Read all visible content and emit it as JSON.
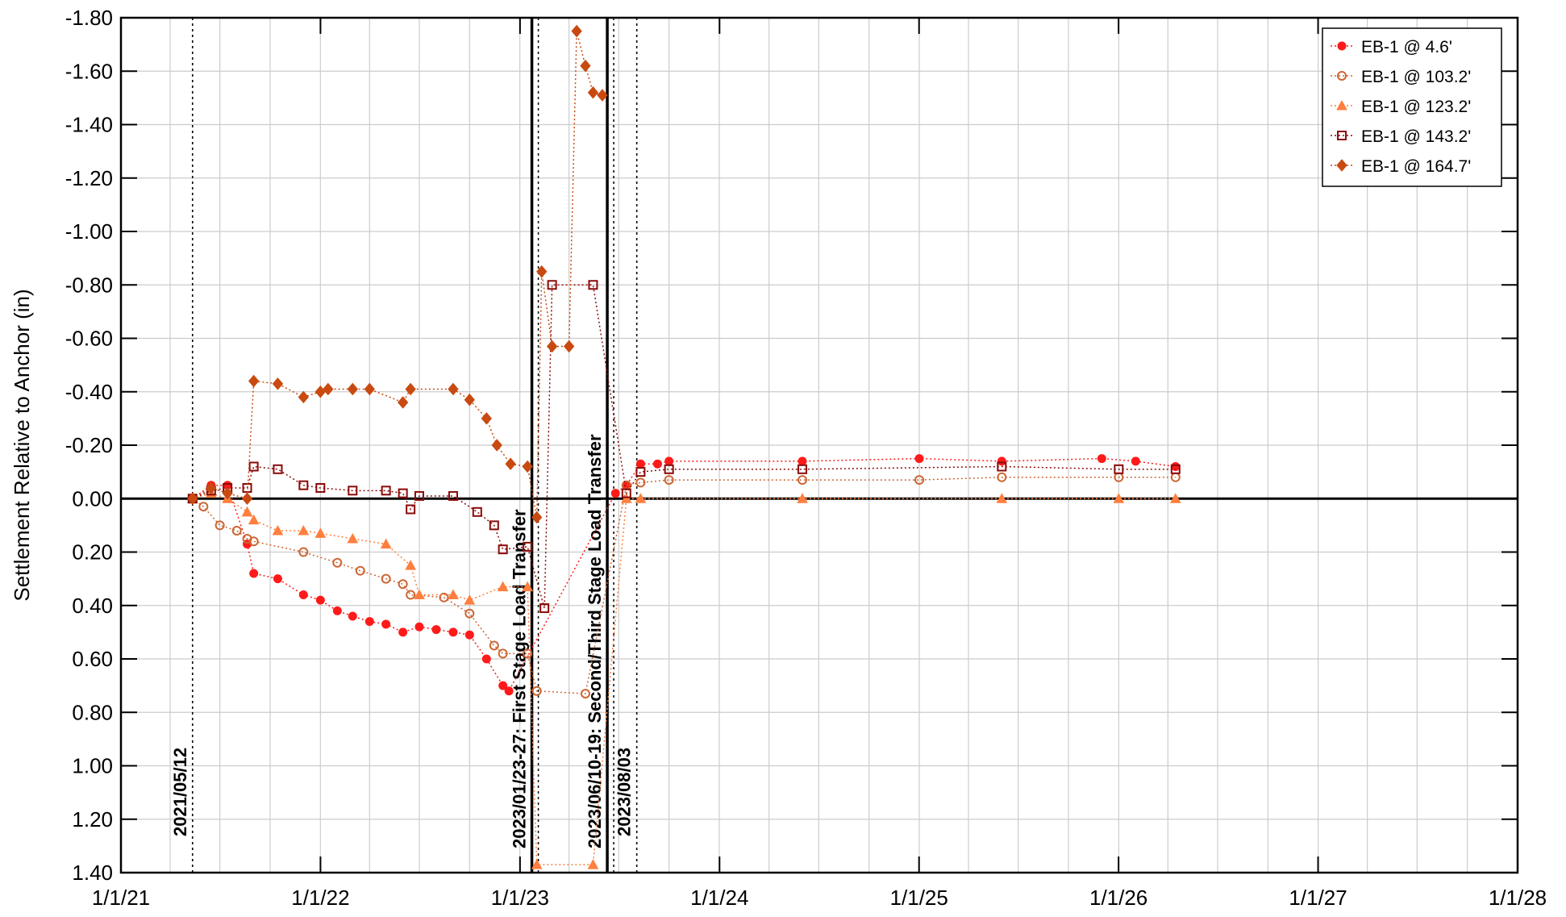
{
  "chart_data": {
    "type": "scatter",
    "title": "",
    "xlabel": "",
    "ylabel": "Settlement Relative to Anchor (in)",
    "x_ticks": [
      "1/1/21",
      "1/1/22",
      "1/1/23",
      "1/1/24",
      "1/1/25",
      "1/1/26",
      "1/1/27",
      "1/1/28"
    ],
    "y_ticks": [
      "-1.80",
      "-1.60",
      "-1.40",
      "-1.20",
      "-1.00",
      "-0.80",
      "-0.60",
      "-0.40",
      "-0.20",
      "0.00",
      "0.20",
      "0.40",
      "0.60",
      "0.80",
      "1.00",
      "1.20",
      "1.40"
    ],
    "xlim": [
      "2021-01-01",
      "2028-01-01"
    ],
    "ylim": [
      -1.8,
      1.4
    ],
    "y_inverted": true,
    "grid": true,
    "legend_position": "top-right",
    "events": [
      {
        "date": "2021-05-12",
        "label": "2021/05/12",
        "style": "dotted"
      },
      {
        "date": "2023-01-23",
        "label": "2023/01/23-27: First Stage Load Transfer",
        "style": "solid"
      },
      {
        "date": "2023-06-10",
        "label": "2023/06/10-19: Second/Third Stage Load Transfer",
        "style": "solid"
      },
      {
        "date": "2023-08-03",
        "label": "2023/08/03",
        "style": "dotted"
      }
    ],
    "series": [
      {
        "name": "EB-1 @ 4.6'",
        "color": "#ff1a1a",
        "marker": "circle-filled",
        "points": [
          [
            "2021-05-12",
            0.0
          ],
          [
            "2021-06-15",
            -0.05
          ],
          [
            "2021-07-15",
            -0.05
          ],
          [
            "2021-08-20",
            0.17
          ],
          [
            "2021-09-01",
            0.28
          ],
          [
            "2021-10-15",
            0.3
          ],
          [
            "2021-12-01",
            0.36
          ],
          [
            "2022-01-01",
            0.38
          ],
          [
            "2022-02-01",
            0.42
          ],
          [
            "2022-03-01",
            0.44
          ],
          [
            "2022-04-01",
            0.46
          ],
          [
            "2022-05-01",
            0.47
          ],
          [
            "2022-06-01",
            0.5
          ],
          [
            "2022-07-01",
            0.48
          ],
          [
            "2022-08-01",
            0.49
          ],
          [
            "2022-09-01",
            0.5
          ],
          [
            "2022-10-01",
            0.51
          ],
          [
            "2022-11-01",
            0.6
          ],
          [
            "2022-12-01",
            0.7
          ],
          [
            "2022-12-12",
            0.72
          ],
          [
            "2023-06-25",
            -0.02
          ],
          [
            "2023-07-15",
            -0.05
          ],
          [
            "2023-08-10",
            -0.13
          ],
          [
            "2023-09-10",
            -0.13
          ],
          [
            "2023-10-01",
            -0.14
          ],
          [
            "2024-06-01",
            -0.14
          ],
          [
            "2025-01-01",
            -0.15
          ],
          [
            "2025-06-01",
            -0.14
          ],
          [
            "2025-12-01",
            -0.15
          ],
          [
            "2026-02-01",
            -0.14
          ],
          [
            "2026-04-15",
            -0.12
          ]
        ]
      },
      {
        "name": "EB-1 @ 103.2'",
        "color": "#cc6633",
        "marker": "circle-open",
        "points": [
          [
            "2021-05-12",
            0.0
          ],
          [
            "2021-06-01",
            0.03
          ],
          [
            "2021-07-01",
            0.1
          ],
          [
            "2021-08-01",
            0.12
          ],
          [
            "2021-08-20",
            0.15
          ],
          [
            "2021-09-01",
            0.16
          ],
          [
            "2021-12-01",
            0.2
          ],
          [
            "2022-02-01",
            0.24
          ],
          [
            "2022-03-15",
            0.27
          ],
          [
            "2022-05-01",
            0.3
          ],
          [
            "2022-06-01",
            0.32
          ],
          [
            "2022-06-15",
            0.36
          ],
          [
            "2022-08-15",
            0.37
          ],
          [
            "2022-10-01",
            0.43
          ],
          [
            "2022-11-15",
            0.55
          ],
          [
            "2022-12-01",
            0.58
          ],
          [
            "2023-01-15",
            0.58
          ],
          [
            "2023-02-01",
            0.72
          ],
          [
            "2023-05-01",
            0.73
          ],
          [
            "2023-07-15",
            -0.05
          ],
          [
            "2023-08-10",
            -0.06
          ],
          [
            "2023-10-01",
            -0.07
          ],
          [
            "2024-06-01",
            -0.07
          ],
          [
            "2025-01-01",
            -0.07
          ],
          [
            "2025-06-01",
            -0.08
          ],
          [
            "2026-01-01",
            -0.08
          ],
          [
            "2026-04-15",
            -0.08
          ]
        ]
      },
      {
        "name": "EB-1 @ 123.2'",
        "color": "#ff7f3f",
        "marker": "triangle",
        "points": [
          [
            "2021-05-12",
            0.0
          ],
          [
            "2021-06-15",
            -0.02
          ],
          [
            "2021-07-15",
            0.0
          ],
          [
            "2021-08-20",
            0.05
          ],
          [
            "2021-09-01",
            0.08
          ],
          [
            "2021-10-15",
            0.12
          ],
          [
            "2021-12-01",
            0.12
          ],
          [
            "2022-01-01",
            0.13
          ],
          [
            "2022-03-01",
            0.15
          ],
          [
            "2022-05-01",
            0.17
          ],
          [
            "2022-06-15",
            0.25
          ],
          [
            "2022-07-01",
            0.36
          ],
          [
            "2022-09-01",
            0.36
          ],
          [
            "2022-10-01",
            0.38
          ],
          [
            "2022-12-01",
            0.33
          ],
          [
            "2023-01-15",
            0.33
          ],
          [
            "2023-02-01",
            1.37
          ],
          [
            "2023-05-15",
            1.37
          ],
          [
            "2023-07-15",
            0.0
          ],
          [
            "2023-08-10",
            0.0
          ],
          [
            "2024-06-01",
            0.0
          ],
          [
            "2025-06-01",
            0.0
          ],
          [
            "2026-01-01",
            0.0
          ],
          [
            "2026-04-15",
            0.0
          ]
        ]
      },
      {
        "name": "EB-1 @ 143.2'",
        "color": "#8b0a0a",
        "marker": "square-open",
        "points": [
          [
            "2021-05-12",
            0.0
          ],
          [
            "2021-06-15",
            -0.03
          ],
          [
            "2021-07-15",
            -0.04
          ],
          [
            "2021-08-20",
            -0.04
          ],
          [
            "2021-09-01",
            -0.12
          ],
          [
            "2021-10-15",
            -0.11
          ],
          [
            "2021-12-01",
            -0.05
          ],
          [
            "2022-01-01",
            -0.04
          ],
          [
            "2022-03-01",
            -0.03
          ],
          [
            "2022-05-01",
            -0.03
          ],
          [
            "2022-06-01",
            -0.02
          ],
          [
            "2022-06-15",
            0.04
          ],
          [
            "2022-07-01",
            -0.01
          ],
          [
            "2022-09-01",
            -0.01
          ],
          [
            "2022-10-15",
            0.05
          ],
          [
            "2022-11-15",
            0.1
          ],
          [
            "2022-12-01",
            0.19
          ],
          [
            "2023-01-15",
            0.18
          ],
          [
            "2023-02-15",
            0.41
          ],
          [
            "2023-03-01",
            -0.8
          ],
          [
            "2023-05-15",
            -0.8
          ],
          [
            "2023-07-15",
            -0.02
          ],
          [
            "2023-08-10",
            -0.1
          ],
          [
            "2023-10-01",
            -0.11
          ],
          [
            "2024-06-01",
            -0.11
          ],
          [
            "2025-06-01",
            -0.12
          ],
          [
            "2026-01-01",
            -0.11
          ],
          [
            "2026-04-15",
            -0.11
          ]
        ]
      },
      {
        "name": "EB-1 @ 164.7'",
        "color": "#c84a10",
        "marker": "diamond",
        "points": [
          [
            "2021-05-12",
            0.0
          ],
          [
            "2021-06-15",
            -0.04
          ],
          [
            "2021-07-15",
            -0.02
          ],
          [
            "2021-08-20",
            0.0
          ],
          [
            "2021-09-01",
            -0.44
          ],
          [
            "2021-10-15",
            -0.43
          ],
          [
            "2021-12-01",
            -0.38
          ],
          [
            "2022-01-01",
            -0.4
          ],
          [
            "2022-01-15",
            -0.41
          ],
          [
            "2022-03-01",
            -0.41
          ],
          [
            "2022-04-01",
            -0.41
          ],
          [
            "2022-06-01",
            -0.36
          ],
          [
            "2022-06-15",
            -0.41
          ],
          [
            "2022-09-01",
            -0.41
          ],
          [
            "2022-10-01",
            -0.37
          ],
          [
            "2022-11-01",
            -0.3
          ],
          [
            "2022-11-20",
            -0.2
          ],
          [
            "2022-12-15",
            -0.13
          ],
          [
            "2023-01-15",
            -0.12
          ],
          [
            "2023-02-01",
            0.07
          ],
          [
            "2023-02-10",
            -0.85
          ],
          [
            "2023-03-01",
            -0.57
          ],
          [
            "2023-04-01",
            -0.57
          ],
          [
            "2023-04-15",
            -1.75
          ],
          [
            "2023-05-01",
            -1.62
          ],
          [
            "2023-05-15",
            -1.52
          ],
          [
            "2023-06-01",
            -1.51
          ]
        ]
      }
    ]
  }
}
